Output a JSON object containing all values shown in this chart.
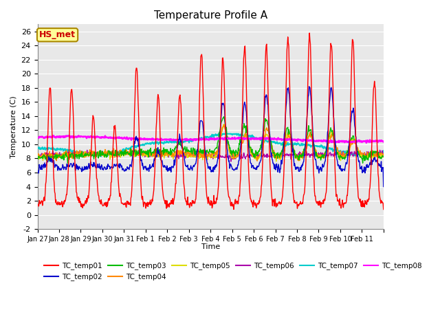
{
  "title": "Temperature Profile A",
  "xlabel": "Time",
  "ylabel": "Temperature (C)",
  "ylim": [
    -2,
    27
  ],
  "yticks": [
    -2,
    0,
    2,
    4,
    6,
    8,
    10,
    12,
    14,
    16,
    18,
    20,
    22,
    24,
    26
  ],
  "annotation": "HS_met",
  "annotation_color": "#cc0000",
  "annotation_bg": "#ffff99",
  "annotation_border": "#aa8800",
  "bg_color": "#e8e8e8",
  "series_colors": {
    "TC_temp01": "#ff0000",
    "TC_temp02": "#0000cc",
    "TC_temp03": "#00bb00",
    "TC_temp04": "#ff8800",
    "TC_temp05": "#dddd00",
    "TC_temp06": "#aa00aa",
    "TC_temp07": "#00cccc",
    "TC_temp08": "#ff00ff"
  },
  "figsize": [
    6.4,
    4.8
  ],
  "dpi": 100
}
